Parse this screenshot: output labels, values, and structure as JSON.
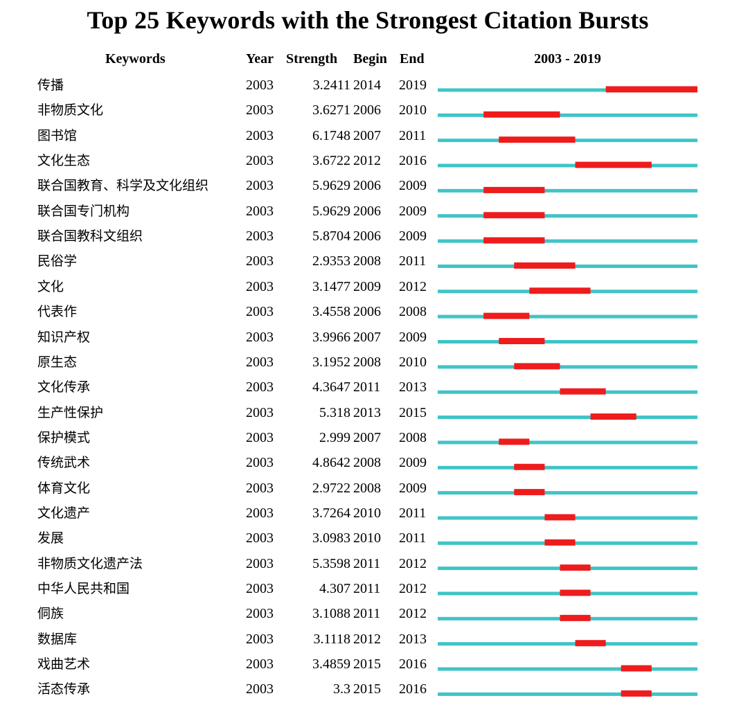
{
  "title": "Top 25 Keywords with the Strongest Citation Bursts",
  "headers": {
    "keywords": "Keywords",
    "year": "Year",
    "strength": "Strength",
    "begin": "Begin",
    "end": "End",
    "range": "2003 - 2019"
  },
  "colors": {
    "baseline": "#40c4c6",
    "burst": "#ee1c1c"
  },
  "chart_data": {
    "type": "table",
    "title": "Top 25 Keywords with the Strongest Citation Bursts",
    "columns": [
      "Keywords",
      "Year",
      "Strength",
      "Begin",
      "End",
      "2003 - 2019"
    ],
    "timeline_range": [
      2003,
      2019
    ],
    "rows": [
      {
        "keyword": "传播",
        "year": "2003",
        "strength": "3.2411",
        "begin": "2014",
        "end": "2019"
      },
      {
        "keyword": "非物质文化",
        "year": "2003",
        "strength": "3.6271",
        "begin": "2006",
        "end": "2010"
      },
      {
        "keyword": "图书馆",
        "year": "2003",
        "strength": "6.1748",
        "begin": "2007",
        "end": "2011"
      },
      {
        "keyword": "文化生态",
        "year": "2003",
        "strength": "3.6722",
        "begin": "2012",
        "end": "2016"
      },
      {
        "keyword": "联合国教育、科学及文化组织",
        "year": "2003",
        "strength": "5.9629",
        "begin": "2006",
        "end": "2009"
      },
      {
        "keyword": "联合国专门机构",
        "year": "2003",
        "strength": "5.9629",
        "begin": "2006",
        "end": "2009"
      },
      {
        "keyword": "联合国教科文组织",
        "year": "2003",
        "strength": "5.8704",
        "begin": "2006",
        "end": "2009"
      },
      {
        "keyword": "民俗学",
        "year": "2003",
        "strength": "2.9353",
        "begin": "2008",
        "end": "2011"
      },
      {
        "keyword": "文化",
        "year": "2003",
        "strength": "3.1477",
        "begin": "2009",
        "end": "2012"
      },
      {
        "keyword": "代表作",
        "year": "2003",
        "strength": "3.4558",
        "begin": "2006",
        "end": "2008"
      },
      {
        "keyword": "知识产权",
        "year": "2003",
        "strength": "3.9966",
        "begin": "2007",
        "end": "2009"
      },
      {
        "keyword": "原生态",
        "year": "2003",
        "strength": "3.1952",
        "begin": "2008",
        "end": "2010"
      },
      {
        "keyword": "文化传承",
        "year": "2003",
        "strength": "4.3647",
        "begin": "2011",
        "end": "2013"
      },
      {
        "keyword": "生产性保护",
        "year": "2003",
        "strength": "5.318",
        "begin": "2013",
        "end": "2015"
      },
      {
        "keyword": "保护模式",
        "year": "2003",
        "strength": "2.999",
        "begin": "2007",
        "end": "2008"
      },
      {
        "keyword": "传统武术",
        "year": "2003",
        "strength": "4.8642",
        "begin": "2008",
        "end": "2009"
      },
      {
        "keyword": "体育文化",
        "year": "2003",
        "strength": "2.9722",
        "begin": "2008",
        "end": "2009"
      },
      {
        "keyword": "文化遗产",
        "year": "2003",
        "strength": "3.7264",
        "begin": "2010",
        "end": "2011"
      },
      {
        "keyword": "发展",
        "year": "2003",
        "strength": "3.0983",
        "begin": "2010",
        "end": "2011"
      },
      {
        "keyword": "非物质文化遗产法",
        "year": "2003",
        "strength": "5.3598",
        "begin": "2011",
        "end": "2012"
      },
      {
        "keyword": "中华人民共和国",
        "year": "2003",
        "strength": "4.307",
        "begin": "2011",
        "end": "2012"
      },
      {
        "keyword": "侗族",
        "year": "2003",
        "strength": "3.1088",
        "begin": "2011",
        "end": "2012"
      },
      {
        "keyword": "数据库",
        "year": "2003",
        "strength": "3.1118",
        "begin": "2012",
        "end": "2013"
      },
      {
        "keyword": "戏曲艺术",
        "year": "2003",
        "strength": "3.4859",
        "begin": "2015",
        "end": "2016"
      },
      {
        "keyword": "活态传承",
        "year": "2003",
        "strength": "3.3",
        "begin": "2015",
        "end": "2016"
      }
    ]
  }
}
